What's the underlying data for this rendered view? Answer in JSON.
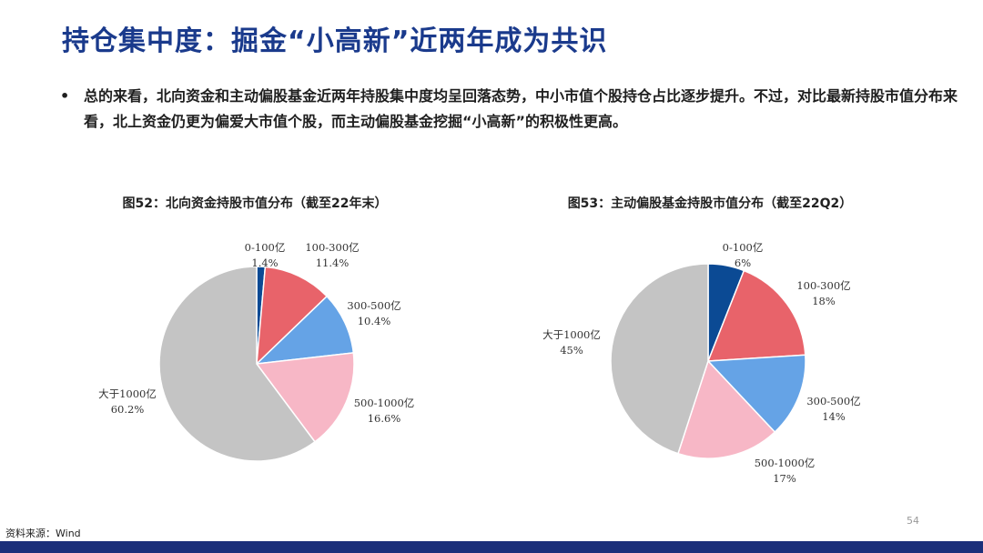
{
  "slide": {
    "title": "持仓集中度：掘金“小高新”近两年成为共识",
    "bullet_symbol": "•",
    "bullet_text": "总的来看，北向资金和主动偏股基金近两年持股集中度均呈回落态势，中小市值个股持仓占比逐步提升。不过，对比最新持股市值分布来看，北上资金仍更为偏爱大市值个股，而主动偏股基金挖掘“小高新”的积极性更高。",
    "source": "资料来源：Wind",
    "page_number": "54"
  },
  "colors": {
    "title": "#1a3a8c",
    "bottom_bar": "#1b2f7a",
    "slice_0_100": "#0b4a94",
    "slice_100_300": "#e8636a",
    "slice_300_500": "#65a3e6",
    "slice_500_1000": "#f7b7c6",
    "slice_gt_1000": "#c4c4c4"
  },
  "chart_data": [
    {
      "type": "pie",
      "title": "图52：北向资金持股市值分布（截至22年末）",
      "start": "12 o'clock, clockwise",
      "categories": [
        "0-100亿",
        "100-300亿",
        "300-500亿",
        "500-1000亿",
        "大于1000亿"
      ],
      "values": [
        1.4,
        11.4,
        10.4,
        16.6,
        60.2
      ],
      "value_labels": [
        "1.4%",
        "11.4%",
        "10.4%",
        "16.6%",
        "60.2%"
      ]
    },
    {
      "type": "pie",
      "title": "图53：主动偏股基金持股市值分布（截至22Q2）",
      "start": "12 o'clock, clockwise",
      "categories": [
        "0-100亿",
        "100-300亿",
        "300-500亿",
        "500-1000亿",
        "大于1000亿"
      ],
      "values": [
        6,
        18,
        14,
        17,
        45
      ],
      "value_labels": [
        "6%",
        "18%",
        "14%",
        "17%",
        "45%"
      ]
    }
  ]
}
